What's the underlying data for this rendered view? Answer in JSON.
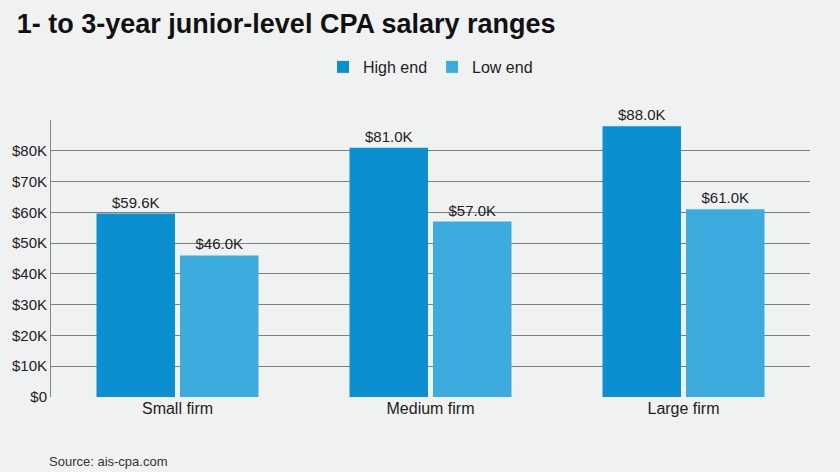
{
  "chart_data": {
    "type": "bar",
    "title": "1- to 3-year junior-level CPA salary ranges",
    "source": "Source: ais-cpa.com",
    "categories": [
      "Small firm",
      "Medium firm",
      "Large firm"
    ],
    "series": [
      {
        "name": "High end",
        "color": "#0a8fd0",
        "values": [
          59.6,
          81.0,
          88.0
        ],
        "value_labels": [
          "$59.6K",
          "$81.0K",
          "$88.0K"
        ]
      },
      {
        "name": "Low end",
        "color": "#3cacdf",
        "values": [
          46.0,
          57.0,
          61.0
        ],
        "value_labels": [
          "$46.0K",
          "$57.0K",
          "$61.0K"
        ]
      }
    ],
    "ylim": [
      0,
      90
    ],
    "yticks": [
      {
        "value": 0,
        "label": "$0"
      },
      {
        "value": 10,
        "label": "$10K"
      },
      {
        "value": 20,
        "label": "$20K"
      },
      {
        "value": 30,
        "label": "$30K"
      },
      {
        "value": 40,
        "label": "$40K"
      },
      {
        "value": 50,
        "label": "$50K"
      },
      {
        "value": 60,
        "label": "$60K"
      },
      {
        "value": 70,
        "label": "$70K"
      },
      {
        "value": 80,
        "label": "$80K"
      }
    ],
    "grid": true,
    "legend": "top",
    "data_labels": true
  }
}
